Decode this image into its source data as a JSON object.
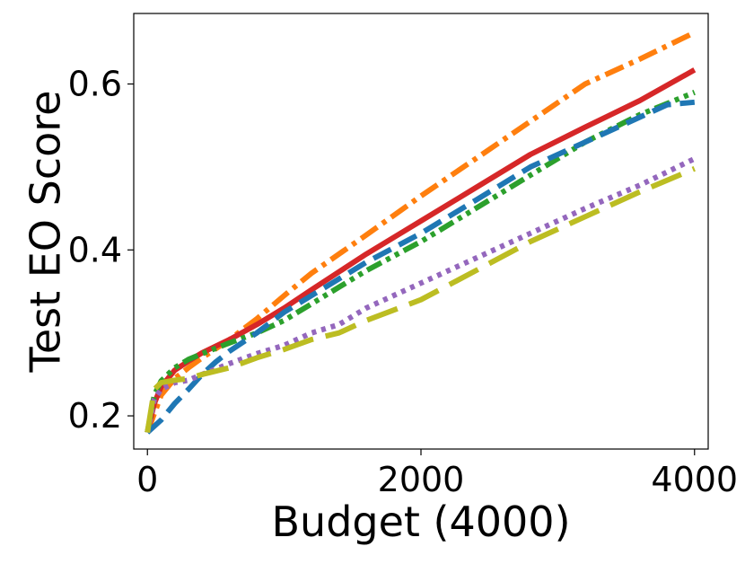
{
  "chart_data": {
    "type": "line",
    "title": "",
    "xlabel": "Budget (4000)",
    "ylabel": "Test EO Score",
    "xlim": [
      -100,
      4100
    ],
    "ylim": [
      0.16,
      0.685
    ],
    "xticks": [
      0,
      2000,
      4000
    ],
    "xtick_labels": [
      "0",
      "2000",
      "4000"
    ],
    "yticks": [
      0.2,
      0.4,
      0.6
    ],
    "ytick_labels": [
      "0.2",
      "0.4",
      "0.6"
    ],
    "grid": false,
    "legend": "none",
    "series": [
      {
        "color": "#ff7f0e",
        "dash": "dashdot",
        "x": [
          0,
          100,
          200,
          300,
          400,
          600,
          800,
          1000,
          1200,
          1600,
          2000,
          2400,
          2800,
          3200,
          3600,
          4000
        ],
        "y": [
          0.18,
          0.225,
          0.245,
          0.258,
          0.27,
          0.292,
          0.317,
          0.345,
          0.372,
          0.418,
          0.465,
          0.51,
          0.555,
          0.6,
          0.63,
          0.662
        ]
      },
      {
        "color": "#d62728",
        "dash": "solid",
        "x": [
          0,
          50,
          100,
          200,
          300,
          400,
          600,
          800,
          1000,
          1200,
          1600,
          2000,
          2400,
          2800,
          3200,
          3600,
          4000
        ],
        "y": [
          0.18,
          0.215,
          0.235,
          0.255,
          0.266,
          0.276,
          0.292,
          0.31,
          0.33,
          0.352,
          0.395,
          0.435,
          0.475,
          0.515,
          0.548,
          0.58,
          0.617
        ]
      },
      {
        "color": "#2ca02c",
        "dash": "dashdotdot",
        "x": [
          0,
          50,
          100,
          200,
          300,
          400,
          600,
          800,
          1000,
          1200,
          1600,
          2000,
          2400,
          2800,
          3200,
          3600,
          4000
        ],
        "y": [
          0.18,
          0.225,
          0.242,
          0.258,
          0.268,
          0.275,
          0.288,
          0.3,
          0.315,
          0.335,
          0.375,
          0.41,
          0.45,
          0.49,
          0.53,
          0.563,
          0.59
        ]
      },
      {
        "color": "#1f77b4",
        "dash": "dashed",
        "x": [
          0,
          100,
          200,
          300,
          400,
          500,
          600,
          800,
          1000,
          1200,
          1600,
          2000,
          2400,
          2800,
          3200,
          3600,
          3800,
          4000
        ],
        "y": [
          0.18,
          0.195,
          0.215,
          0.232,
          0.25,
          0.265,
          0.278,
          0.3,
          0.325,
          0.345,
          0.385,
          0.42,
          0.46,
          0.5,
          0.53,
          0.56,
          0.575,
          0.578
        ]
      },
      {
        "color": "#9467bd",
        "dash": "dotted",
        "x": [
          0,
          50,
          100,
          200,
          300,
          400,
          600,
          800,
          1000,
          1200,
          1400,
          1600,
          2000,
          2400,
          2800,
          3200,
          3600,
          4000
        ],
        "y": [
          0.18,
          0.22,
          0.232,
          0.24,
          0.243,
          0.25,
          0.263,
          0.275,
          0.285,
          0.3,
          0.31,
          0.33,
          0.36,
          0.39,
          0.42,
          0.45,
          0.478,
          0.51
        ]
      },
      {
        "color": "#bcbd22",
        "dash": "longdash",
        "x": [
          0,
          50,
          100,
          200,
          300,
          400,
          600,
          800,
          1000,
          1200,
          1400,
          1600,
          2000,
          2400,
          2800,
          3200,
          3600,
          4000
        ],
        "y": [
          0.18,
          0.232,
          0.24,
          0.243,
          0.245,
          0.25,
          0.258,
          0.27,
          0.28,
          0.292,
          0.3,
          0.315,
          0.34,
          0.375,
          0.41,
          0.44,
          0.47,
          0.498
        ]
      }
    ]
  }
}
